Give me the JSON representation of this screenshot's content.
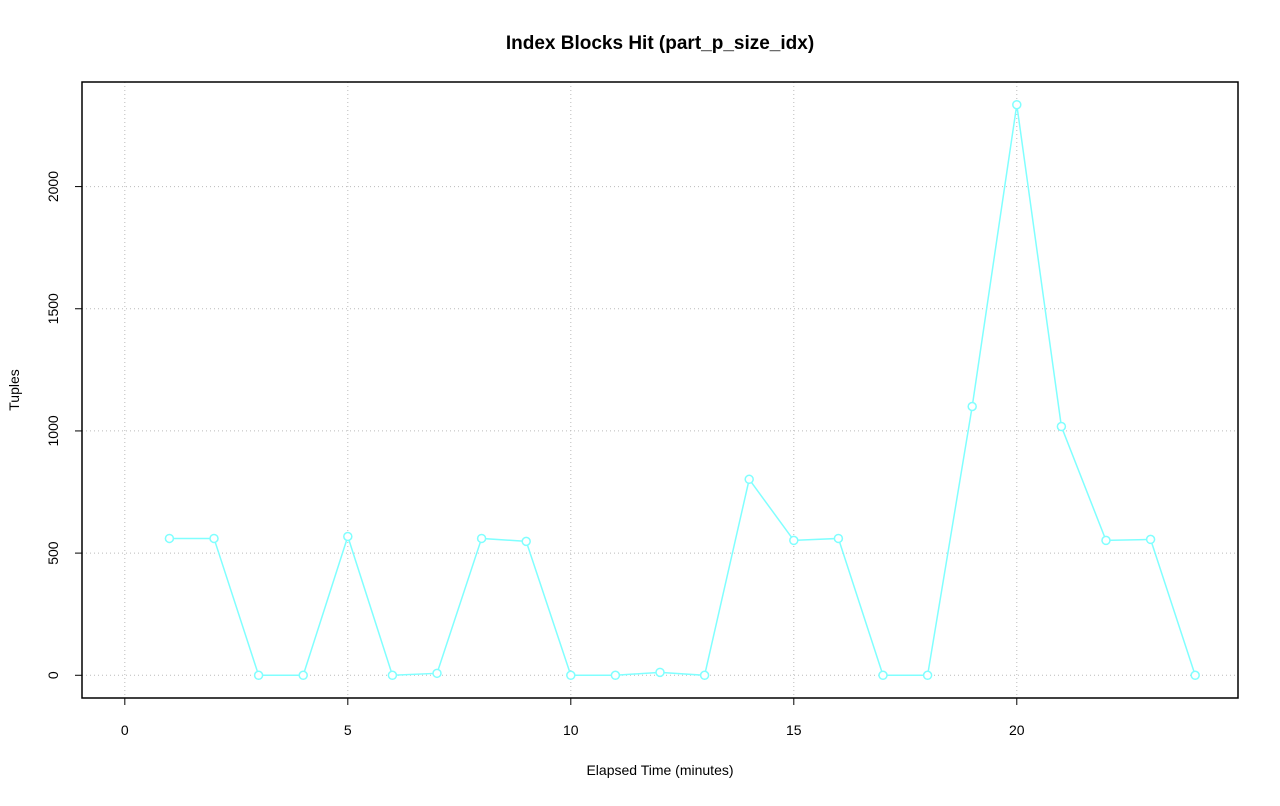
{
  "chart_data": {
    "type": "line",
    "title": "Index Blocks Hit (part_p_size_idx)",
    "x_label": "Elapsed Time (minutes)",
    "y_label": "Tuples",
    "x": [
      1,
      2,
      3,
      4,
      5,
      6,
      7,
      8,
      9,
      10,
      11,
      12,
      13,
      14,
      15,
      16,
      17,
      18,
      19,
      20,
      21,
      22,
      23,
      24
    ],
    "series": [
      {
        "name": "part_p_size_idx",
        "color": "#80ffff",
        "values": [
          560,
          560,
          0,
          0,
          568,
          0,
          8,
          560,
          548,
          0,
          0,
          12,
          0,
          802,
          552,
          560,
          0,
          0,
          1100,
          2335,
          1018,
          552,
          556,
          0
        ]
      }
    ],
    "xlim": [
      -0.96,
      24.96
    ],
    "xticks": [
      0,
      5,
      10,
      15,
      20
    ],
    "ylim": [
      -93,
      2428
    ],
    "yticks": [
      0,
      500,
      1000,
      1500,
      2000
    ],
    "grid": true
  }
}
